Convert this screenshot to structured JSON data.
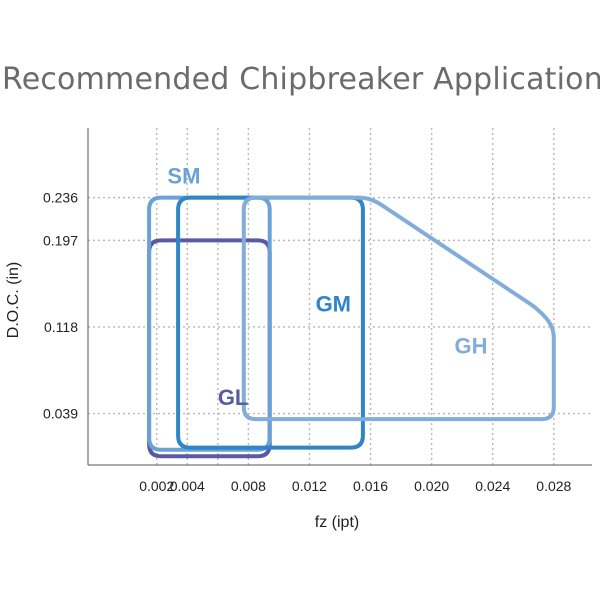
{
  "title": "Recommended Chipbreaker Applications",
  "chart_data": {
    "type": "area",
    "title": "Recommended Chipbreaker Applications",
    "xlabel": "fz (ipt)",
    "ylabel": "D.O.C. (in)",
    "x_ticks": [
      "0.002",
      "0.004",
      "0.008",
      "0.012",
      "0.016",
      "0.020",
      "0.024",
      "0.028"
    ],
    "x_tick_values": [
      0.002,
      0.004,
      0.008,
      0.012,
      0.016,
      0.02,
      0.024,
      0.028
    ],
    "y_ticks": [
      "0.236",
      "0.197",
      "0.118",
      "0.039"
    ],
    "y_tick_values": [
      0.236,
      0.197,
      0.118,
      0.039
    ],
    "xlim": [
      -0.0025,
      0.0305
    ],
    "ylim": [
      -0.0079,
      0.2995
    ],
    "grid": true,
    "series": [
      {
        "name": "GL",
        "color": "#5a5aa0",
        "points": [
          [
            0.0015,
            0.197
          ],
          [
            0.0094,
            0.197
          ],
          [
            0.0094,
            0.0
          ],
          [
            0.0015,
            0.0
          ]
        ]
      },
      {
        "name": "SM",
        "color": "#6aa2d8",
        "points": [
          [
            0.0015,
            0.236
          ],
          [
            0.0094,
            0.236
          ],
          [
            0.0094,
            0.006
          ],
          [
            0.0015,
            0.006
          ]
        ]
      },
      {
        "name": "GM",
        "color": "#2f85c8",
        "points": [
          [
            0.0034,
            0.236
          ],
          [
            0.0155,
            0.236
          ],
          [
            0.0155,
            0.008
          ],
          [
            0.0034,
            0.008
          ]
        ]
      },
      {
        "name": "GH",
        "color": "#82acd9",
        "points": [
          [
            0.0077,
            0.236
          ],
          [
            0.016,
            0.236
          ],
          [
            0.027,
            0.134
          ],
          [
            0.028,
            0.118
          ],
          [
            0.028,
            0.034
          ],
          [
            0.0077,
            0.034
          ]
        ]
      }
    ],
    "labels": [
      {
        "text": "SM",
        "x": 0.0027,
        "y": 0.249,
        "color": "#6aa2d8"
      },
      {
        "text": "GM",
        "x": 0.0124,
        "y": 0.132,
        "color": "#2f85c8"
      },
      {
        "text": "GL",
        "x": 0.006,
        "y": 0.047,
        "color": "#5a5aa0"
      },
      {
        "text": "GH",
        "x": 0.0215,
        "y": 0.094,
        "color": "#82acd9"
      }
    ]
  }
}
